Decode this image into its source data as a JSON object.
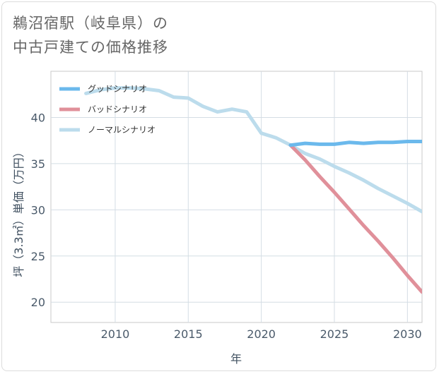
{
  "title": {
    "line1": "鵜沼宿駅（岐阜県）の",
    "line2": "中古戸建ての価格推移"
  },
  "chart_data": {
    "type": "line",
    "xlabel": "年",
    "ylabel": "坪（3.3㎡）単価（万円）",
    "xlim": [
      2005.6,
      2031.0
    ],
    "ylim": [
      17.8,
      45.0
    ],
    "xticks": [
      2010,
      2015,
      2020,
      2025,
      2030
    ],
    "yticks": [
      20,
      25,
      30,
      35,
      40
    ],
    "grid": true,
    "legend_position": "top-left",
    "series": [
      {
        "name": "グッドシナリオ",
        "color": "#6bb9ec",
        "x": [
          2022,
          2023,
          2024,
          2025,
          2026,
          2027,
          2028,
          2029,
          2030,
          2031
        ],
        "y": [
          37.0,
          37.2,
          37.1,
          37.1,
          37.3,
          37.2,
          37.3,
          37.3,
          37.4,
          37.4
        ]
      },
      {
        "name": "バッドシナリオ",
        "color": "#e0909a",
        "x": [
          2022,
          2023,
          2024,
          2025,
          2026,
          2027,
          2028,
          2029,
          2030,
          2031
        ],
        "y": [
          37.0,
          35.4,
          33.6,
          31.9,
          30.1,
          28.3,
          26.6,
          24.8,
          22.9,
          21.1
        ]
      },
      {
        "name": "ノーマルシナリオ",
        "color": "#bcdcec",
        "x": [
          2008,
          2009,
          2010,
          2011,
          2012,
          2013,
          2014,
          2015,
          2016,
          2017,
          2018,
          2019,
          2020,
          2021,
          2022,
          2023,
          2024,
          2025,
          2026,
          2027,
          2028,
          2029,
          2030,
          2031
        ],
        "y": [
          42.6,
          43.0,
          43.2,
          43.2,
          43.1,
          42.9,
          42.2,
          42.1,
          41.2,
          40.6,
          40.9,
          40.6,
          38.3,
          37.8,
          37.0,
          36.1,
          35.5,
          34.7,
          34.0,
          33.2,
          32.3,
          31.5,
          30.7,
          29.8
        ]
      }
    ]
  }
}
